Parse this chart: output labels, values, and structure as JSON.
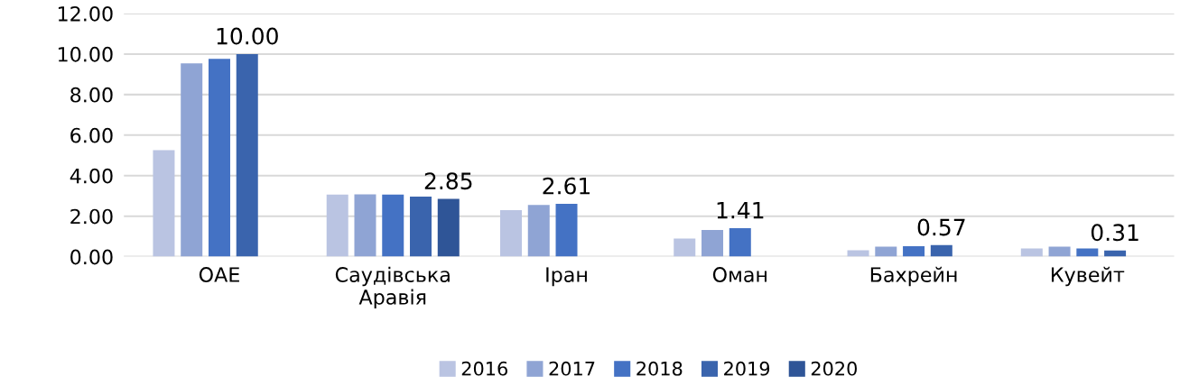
{
  "chart_data": {
    "type": "bar",
    "categories": [
      "ОАЕ",
      "Саудівська\nАравія",
      "Іран",
      "Оман",
      "Бахрейн",
      "Кувейт"
    ],
    "series": [
      {
        "name": "2016",
        "color": "#bac4e2",
        "values": [
          5.26,
          3.06,
          2.3,
          0.89,
          0.32,
          0.41
        ]
      },
      {
        "name": "2017",
        "color": "#8fa4d4",
        "values": [
          9.54,
          3.08,
          2.55,
          1.32,
          0.5,
          0.5
        ]
      },
      {
        "name": "2018",
        "color": "#4472c4",
        "values": [
          9.76,
          3.06,
          2.61,
          1.41,
          0.52,
          0.41
        ],
        "value_labels": [
          null,
          null,
          "2.61",
          "1.41",
          null,
          null
        ]
      },
      {
        "name": "2019",
        "color": "#3a64ad",
        "values": [
          10.0,
          2.97,
          null,
          null,
          0.57,
          0.31
        ],
        "value_labels": [
          "10.00",
          null,
          null,
          null,
          "0.57",
          "0.31"
        ]
      },
      {
        "name": "2020",
        "color": "#2f5597",
        "values": [
          null,
          2.85,
          null,
          null,
          null,
          null
        ],
        "value_labels": [
          null,
          "2.85",
          null,
          null,
          null,
          null
        ]
      }
    ],
    "ylim": [
      0,
      12
    ],
    "yticks": [
      {
        "value": 0,
        "label": "0.00"
      },
      {
        "value": 2,
        "label": "2.00"
      },
      {
        "value": 4,
        "label": "4.00"
      },
      {
        "value": 6,
        "label": "6.00"
      },
      {
        "value": 8,
        "label": "8.00"
      },
      {
        "value": 10,
        "label": "10.00"
      },
      {
        "value": 12,
        "label": "12.00"
      }
    ],
    "grid": "y",
    "legend": "bottom"
  }
}
